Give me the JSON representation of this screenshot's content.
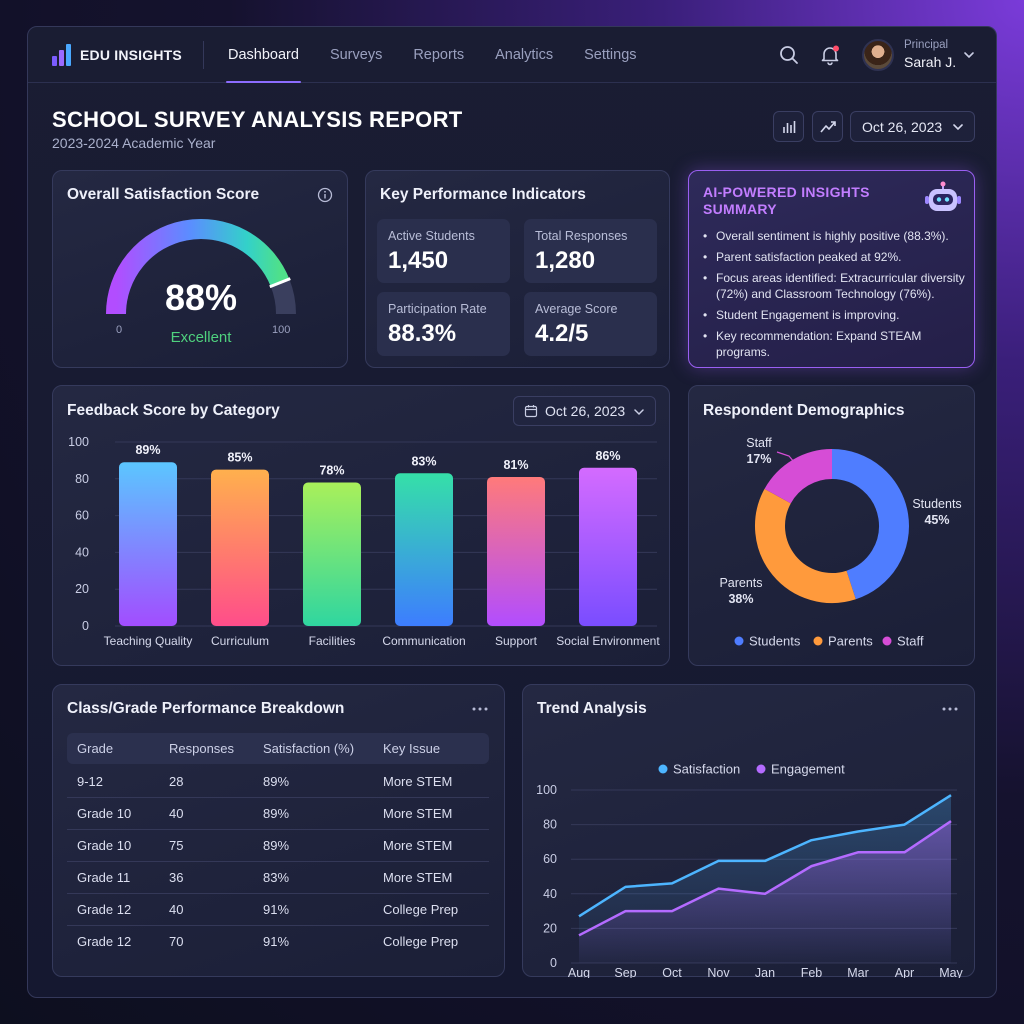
{
  "nav": {
    "brand": "EDU INSIGHTS",
    "tabs": [
      {
        "label": "Dashboard",
        "active": true
      },
      {
        "label": "Surveys",
        "active": false
      },
      {
        "label": "Reports",
        "active": false
      },
      {
        "label": "Analytics",
        "active": false
      },
      {
        "label": "Settings",
        "active": false
      }
    ],
    "icons": [
      "search-icon",
      "bell-icon"
    ],
    "user": {
      "role": "Principal",
      "name": "Sarah J."
    }
  },
  "header": {
    "title": "SCHOOL SURVEY ANALYSIS REPORT",
    "subtitle": "2023-2024 Academic Year",
    "date": "Oct 26, 2023"
  },
  "satisfaction": {
    "title": "Overall Satisfaction Score",
    "value": "88%",
    "score": 88,
    "rating": "Excellent",
    "min": "0",
    "max": "100"
  },
  "kpis": {
    "title": "Key Performance Indicators",
    "items": [
      {
        "label": "Active Students",
        "value": "1,450"
      },
      {
        "label": "Total Responses",
        "value": "1,280"
      },
      {
        "label": "Participation Rate",
        "value": "88.3%"
      },
      {
        "label": "Average Score",
        "value": "4.2/5"
      }
    ]
  },
  "ai": {
    "title": "AI-POWERED INSIGHTS SUMMARY",
    "items": [
      "Overall sentiment is highly positive (88.3%).",
      "Parent satisfaction peaked at 92%.",
      "Focus areas identified: Extracurricular diversity (72%) and Classroom Technology (76%).",
      "Student Engagement is improving.",
      "Key recommendation: Expand STEAM programs."
    ]
  },
  "feedback": {
    "title": "Feedback Score by Category",
    "date": "Oct 26, 2023"
  },
  "demographics": {
    "title": "Respondent Demographics"
  },
  "table": {
    "title": "Class/Grade Performance Breakdown",
    "headers": [
      "Grade",
      "Responses",
      "Satisfaction (%)",
      "Key Issue"
    ],
    "rows": [
      [
        "9-12",
        "28",
        "89%",
        "More STEM"
      ],
      [
        "Grade 10",
        "40",
        "89%",
        "More STEM"
      ],
      [
        "Grade 10",
        "75",
        "89%",
        "More STEM"
      ],
      [
        "Grade 11",
        "36",
        "83%",
        "More STEM"
      ],
      [
        "Grade 12",
        "40",
        "91%",
        "College Prep"
      ],
      [
        "Grade 12",
        "70",
        "91%",
        "College Prep"
      ]
    ]
  },
  "trend": {
    "title": "Trend Analysis"
  },
  "colors": {
    "accent": "#8c6cff",
    "ai_border": "#9a5ff2",
    "excellent_green": "#4fd17e"
  },
  "chart_data": [
    {
      "type": "bar",
      "title": "Feedback Score by Category",
      "categories": [
        "Teaching Quality",
        "Curriculum",
        "Facilities",
        "Communication",
        "Support",
        "Social Environment"
      ],
      "values": [
        89,
        85,
        78,
        83,
        81,
        86
      ],
      "data_labels": [
        "89%",
        "85%",
        "78%",
        "83%",
        "81%",
        "86%"
      ],
      "ylim": [
        0,
        100
      ],
      "yticks": [
        0,
        20,
        40,
        60,
        80,
        100
      ],
      "grid": true,
      "colors": [
        [
          "#5bc6ff",
          "#a24dff"
        ],
        [
          "#ffb04d",
          "#ff4d8a"
        ],
        [
          "#a9f05a",
          "#2fd6a0"
        ],
        [
          "#35e0a8",
          "#3d7dff"
        ],
        [
          "#ff7a7a",
          "#b24dff"
        ],
        [
          "#d46bff",
          "#7a4dff"
        ]
      ]
    },
    {
      "type": "pie",
      "title": "Respondent Demographics",
      "donut": true,
      "slices": [
        {
          "label": "Students",
          "value": 45,
          "text": "45%",
          "color": "#4f7dff"
        },
        {
          "label": "Parents",
          "value": 38,
          "text": "38%",
          "color": "#ff9a3c"
        },
        {
          "label": "Staff",
          "value": 17,
          "text": "17%",
          "color": "#d64dd6"
        }
      ],
      "legend": "bottom"
    },
    {
      "type": "line",
      "title": "Trend Analysis",
      "x": [
        "Aug",
        "Sep",
        "Oct",
        "Nov",
        "Jan",
        "Feb",
        "Mar",
        "Apr",
        "May"
      ],
      "series": [
        {
          "name": "Satisfaction",
          "color": "#4db5ff",
          "values": [
            27,
            44,
            46,
            59,
            59,
            71,
            76,
            80,
            97
          ]
        },
        {
          "name": "Engagement",
          "color": "#b46bff",
          "values": [
            16,
            30,
            30,
            43,
            40,
            56,
            64,
            64,
            82
          ]
        }
      ],
      "ylim": [
        0,
        100
      ],
      "yticks": [
        0,
        20,
        40,
        60,
        80,
        100
      ],
      "grid": true,
      "legend": "top"
    }
  ]
}
